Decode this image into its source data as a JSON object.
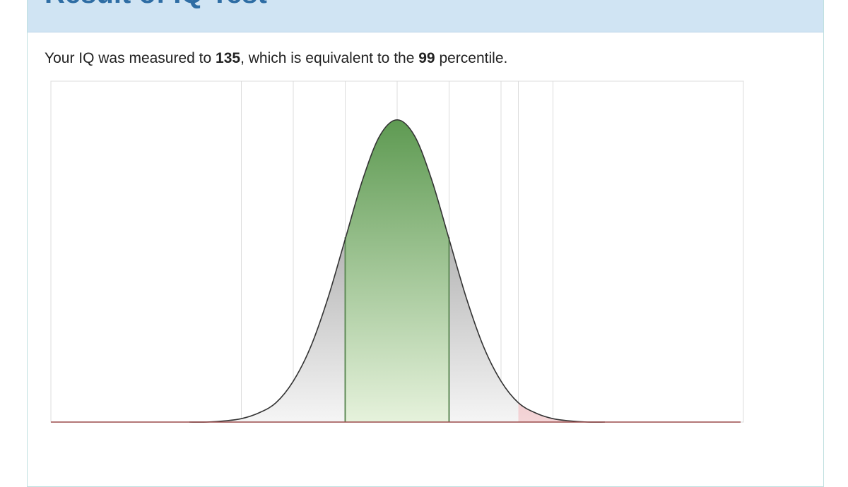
{
  "header": {
    "title": "Result of IQ Test"
  },
  "summary": {
    "prefix": "Your IQ was measured to",
    "score": 135,
    "middle": ", which is equivalent to the",
    "percentile": 99,
    "suffix": "percentile."
  },
  "chart_data": {
    "type": "area",
    "x": [
      40,
      45,
      50,
      55,
      60,
      65,
      70,
      75,
      80,
      85,
      90,
      95,
      100,
      105,
      110,
      115,
      120,
      125,
      130,
      135,
      140,
      145,
      150,
      155,
      160
    ],
    "values": [
      0.0,
      0.0,
      0.01,
      0.03,
      0.08,
      0.17,
      0.36,
      0.66,
      1.09,
      1.61,
      2.13,
      2.52,
      2.66,
      2.52,
      2.13,
      1.61,
      1.09,
      0.66,
      0.36,
      0.17,
      0.08,
      0.03,
      0.01,
      0.0,
      0.0
    ],
    "xlim": [
      0,
      200
    ],
    "ylim": [
      0,
      3
    ],
    "xticks": [
      55,
      70,
      85,
      100,
      115,
      130,
      135,
      145
    ],
    "highlight_range": [
      85,
      115
    ],
    "highlight_color": "#5e9a52",
    "score": 135,
    "score_color": "#d2606a",
    "color": "#999999",
    "grid": true
  }
}
